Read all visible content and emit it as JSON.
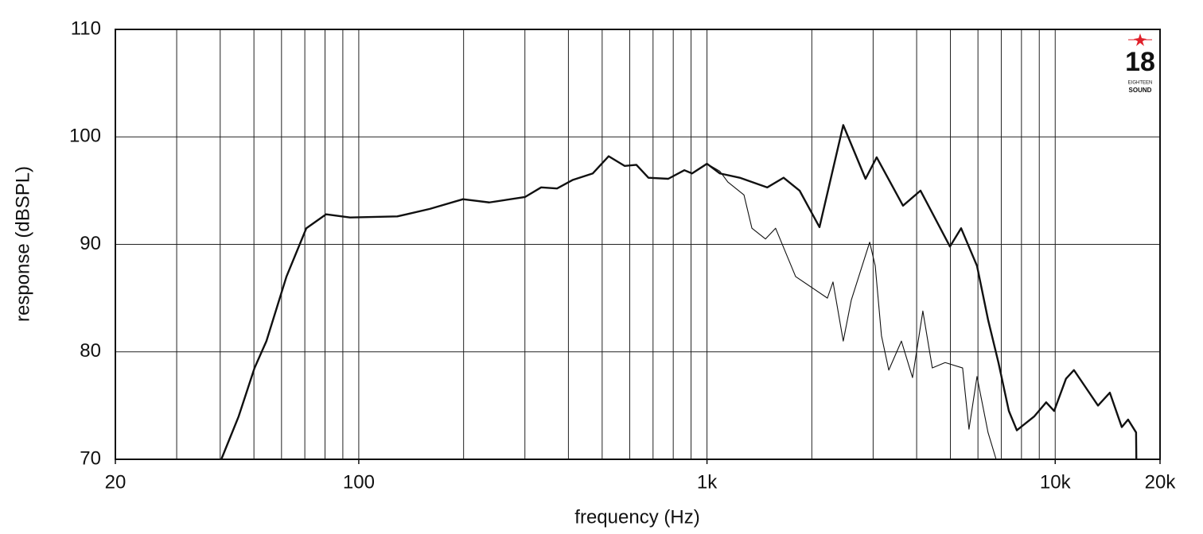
{
  "chart_data": {
    "type": "line",
    "xlabel": "frequency (Hz)",
    "ylabel": "response (dBSPL)",
    "log_x": true,
    "grid": true,
    "xlim": [
      20,
      20000
    ],
    "ylim": [
      70,
      110
    ],
    "xticks": [
      20,
      100,
      {
        "value": 1000,
        "label": "1k"
      },
      {
        "value": 10000,
        "label": "10k"
      },
      {
        "value": 20000,
        "label": "20k"
      }
    ],
    "xgrid": [
      30,
      40,
      50,
      60,
      70,
      80,
      90,
      100,
      200,
      300,
      400,
      500,
      600,
      700,
      800,
      900,
      1000,
      2000,
      3000,
      4000,
      5000,
      6000,
      7000,
      8000,
      9000,
      10000
    ],
    "yticks": [
      70,
      80,
      90,
      100,
      110
    ],
    "logo": {
      "number": "18",
      "line1": "EIGHTEEN",
      "line2": "SOUND"
    },
    "series": [
      {
        "color": "#111111",
        "width": 2.4,
        "x": [
          40.3,
          45.2,
          50.2,
          54.3,
          62,
          70.7,
          80.6,
          94.4,
          129,
          160,
          199.2,
          237,
          300,
          334,
          371,
          412,
          470,
          522,
          580,
          627,
          679,
          774,
          861,
          906,
          1000,
          1089,
          1242,
          1490,
          1660,
          1845,
          2104,
          2462,
          2853,
          3071,
          3655,
          4104,
          4985,
          5367,
          5962,
          6413,
          6870,
          7360,
          7760,
          8710,
          9420,
          9930,
          10740,
          11320,
          13270,
          14350,
          15530,
          16190,
          17070,
          17100
        ],
        "values": [
          70,
          74,
          78.5,
          81,
          87,
          91.5,
          92.8,
          92.5,
          92.6,
          93.3,
          94.2,
          93.9,
          94.4,
          95.3,
          95.2,
          96,
          96.6,
          98.2,
          97.3,
          97.4,
          96.2,
          96.1,
          96.9,
          96.6,
          97.5,
          96.6,
          96.2,
          95.3,
          96.2,
          95,
          91.6,
          101.1,
          96.1,
          98.1,
          93.6,
          95,
          89.8,
          91.5,
          88,
          83,
          79,
          74.5,
          72.7,
          74,
          75.3,
          74.5,
          77.5,
          78.3,
          75,
          76.2,
          73,
          73.7,
          72.5,
          70
        ]
      },
      {
        "color": "#111111",
        "width": 1.1,
        "x": [
          40.3,
          45.2,
          50.2,
          54.3,
          62,
          70.7,
          80.6,
          94.4,
          129,
          160,
          199.2,
          237,
          300,
          334,
          371,
          412,
          470,
          522,
          580,
          627,
          679,
          774,
          861,
          906,
          1000,
          1089,
          1148,
          1277,
          1346,
          1472,
          1574,
          1797,
          1996,
          2217,
          2301,
          2462,
          2596,
          2932,
          3042,
          3170,
          3327,
          3617,
          3893,
          4168,
          4437,
          4830,
          5421,
          5654,
          5962,
          6413,
          6765
        ],
        "values": [
          70,
          74,
          78.5,
          81,
          87,
          91.5,
          92.8,
          92.5,
          92.6,
          93.3,
          94.2,
          93.9,
          94.4,
          95.3,
          95.2,
          96,
          96.6,
          98.2,
          97.3,
          97.4,
          96.2,
          96.1,
          96.9,
          96.6,
          97.5,
          96.8,
          95.8,
          94.6,
          91.5,
          90.5,
          91.5,
          87,
          86,
          85,
          86.5,
          81,
          84.8,
          90.2,
          88,
          81.5,
          78.3,
          81,
          77.6,
          83.8,
          78.5,
          79,
          78.5,
          72.8,
          77.7,
          72.5,
          70
        ]
      }
    ]
  }
}
